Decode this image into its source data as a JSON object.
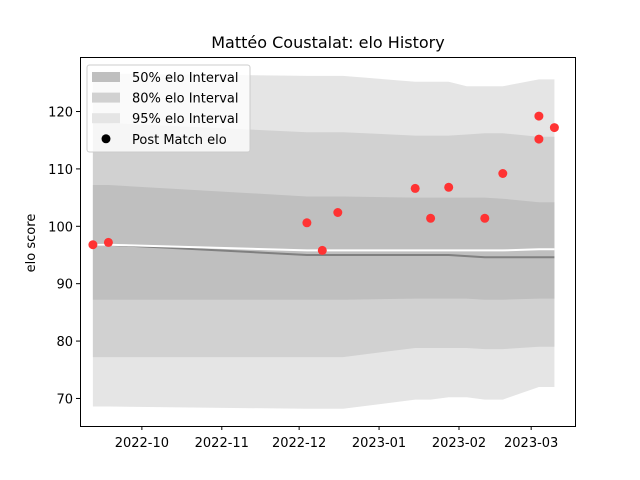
{
  "chart_data": {
    "type": "area",
    "title": "Mattéo Coustalat: elo History",
    "xlabel": "",
    "ylabel": "elo score",
    "x_range": [
      "2022-09-07",
      "2023-03-18"
    ],
    "ylim": [
      65.2,
      129.5
    ],
    "x_ticks": [
      "2022-10",
      "2022-11",
      "2022-12",
      "2023-01",
      "2023-02",
      "2023-03"
    ],
    "y_ticks": [
      70,
      80,
      90,
      100,
      110,
      120
    ],
    "grid": false,
    "legend_position": "top-left",
    "legend": [
      {
        "label": "50% elo Interval",
        "swatch": "band50"
      },
      {
        "label": "80% elo Interval",
        "swatch": "band80"
      },
      {
        "label": "95% elo Interval",
        "swatch": "band95"
      },
      {
        "label": "Post Match elo",
        "swatch": "marker"
      }
    ],
    "colors": {
      "band95": "#e5e5e5",
      "band80": "#d1d1d1",
      "band50": "#bfbfbf",
      "mean_line": "#808080",
      "white_line": "#ffffff",
      "marker": "#ff3333"
    },
    "bands": {
      "x": [
        "2022-09-12",
        "2022-09-18",
        "2022-12-04",
        "2022-12-10",
        "2022-12-18",
        "2023-01-15",
        "2023-01-21",
        "2023-01-28",
        "2023-02-04",
        "2023-02-11",
        "2023-02-18",
        "2023-03-04",
        "2023-03-10"
      ],
      "mean": [
        96.8,
        96.8,
        95.0,
        95.0,
        95.0,
        95.0,
        95.0,
        95.0,
        94.8,
        94.6,
        94.6,
        94.6,
        94.6
      ],
      "band50_low": [
        87.2,
        87.2,
        87.2,
        87.2,
        87.2,
        87.4,
        87.4,
        87.4,
        87.4,
        87.2,
        87.2,
        87.4,
        87.4
      ],
      "band50_high": [
        107.2,
        107.2,
        105.2,
        105.2,
        105.2,
        105.0,
        105.0,
        105.0,
        105.0,
        105.0,
        104.8,
        104.2,
        104.2
      ],
      "band80_low": [
        77.2,
        77.2,
        77.2,
        77.2,
        77.2,
        78.8,
        78.8,
        78.8,
        78.8,
        78.6,
        78.6,
        79.0,
        79.0
      ],
      "band80_high": [
        118.0,
        118.0,
        116.4,
        116.4,
        116.4,
        115.8,
        115.8,
        115.8,
        116.0,
        116.2,
        116.2,
        115.6,
        115.6
      ],
      "band95_low": [
        68.6,
        68.6,
        68.2,
        68.2,
        68.2,
        69.8,
        69.8,
        70.2,
        70.2,
        69.8,
        69.8,
        72.0,
        72.0
      ],
      "band95_high": [
        126.6,
        126.6,
        126.2,
        126.2,
        126.2,
        125.2,
        125.2,
        125.2,
        124.4,
        124.4,
        124.4,
        125.6,
        125.6
      ],
      "white_line": [
        96.8,
        96.8,
        95.8,
        95.8,
        95.8,
        95.8,
        95.8,
        95.8,
        95.8,
        95.8,
        95.8,
        96.0,
        96.0
      ]
    },
    "series": [
      {
        "name": "Post Match elo",
        "x": [
          "2022-09-12",
          "2022-09-18",
          "2022-12-04",
          "2022-12-10",
          "2022-12-16",
          "2023-01-15",
          "2023-01-21",
          "2023-01-28",
          "2023-02-11",
          "2023-02-18",
          "2023-03-04",
          "2023-03-04",
          "2023-03-10"
        ],
        "y": [
          96.8,
          97.2,
          100.6,
          95.8,
          102.4,
          106.6,
          101.4,
          106.8,
          101.4,
          109.2,
          115.2,
          119.2,
          117.2
        ]
      }
    ]
  }
}
